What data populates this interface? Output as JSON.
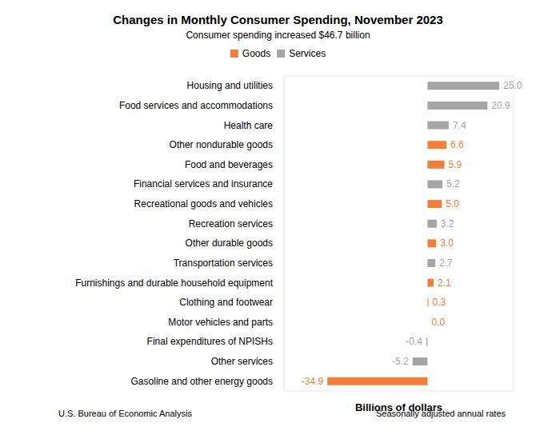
{
  "chart_data": {
    "type": "bar",
    "orientation": "horizontal",
    "title": "Changes in Monthly Consumer Spending, November 2023",
    "subtitle": "Consumer spending increased $46.7 billion",
    "xlabel": "Billions of dollars",
    "annotations": [
      "U.S. Bureau of Economic Analysis",
      "Seasonally adjusted annual rates"
    ],
    "categories": [
      "Housing and utilities",
      "Food services and accommodations",
      "Health care",
      "Other nondurable goods",
      "Food and beverages",
      "Financial services and insurance",
      "Recreational goods and vehicles",
      "Recreation services",
      "Other durable goods",
      "Transportation services",
      "Furnishings and durable household equipment",
      "Clothing and footwear",
      "Motor vehicles and parts",
      "Final expenditures of NPISHs",
      "Other services",
      "Gasoline and other energy goods"
    ],
    "series": [
      {
        "name": "Goods",
        "color": "#f07f3c",
        "values": [
          null,
          null,
          null,
          6.6,
          5.9,
          null,
          5.0,
          null,
          3.0,
          null,
          2.1,
          0.3,
          0.0,
          null,
          null,
          -34.9
        ],
        "value_labels": [
          null,
          null,
          null,
          "6.6",
          "5.9",
          null,
          "5.0",
          null,
          "3.0",
          null,
          "2.1",
          "0.3",
          "0.0",
          null,
          null,
          "-34.9"
        ]
      },
      {
        "name": "Services",
        "color": "#a5a5a5",
        "values": [
          25.0,
          20.9,
          7.4,
          null,
          null,
          5.2,
          null,
          3.2,
          null,
          2.7,
          null,
          null,
          null,
          -0.4,
          -5.2,
          null
        ],
        "value_labels": [
          "25.0",
          "20.9",
          "7.4",
          null,
          null,
          "5.2",
          null,
          "3.2",
          null,
          "2.7",
          null,
          null,
          null,
          "-0.4",
          "-5.2",
          null
        ]
      }
    ],
    "xlim": [
      -50,
      30
    ],
    "tick_labels": false,
    "grid": false,
    "legend": "top",
    "data_labels": true
  }
}
